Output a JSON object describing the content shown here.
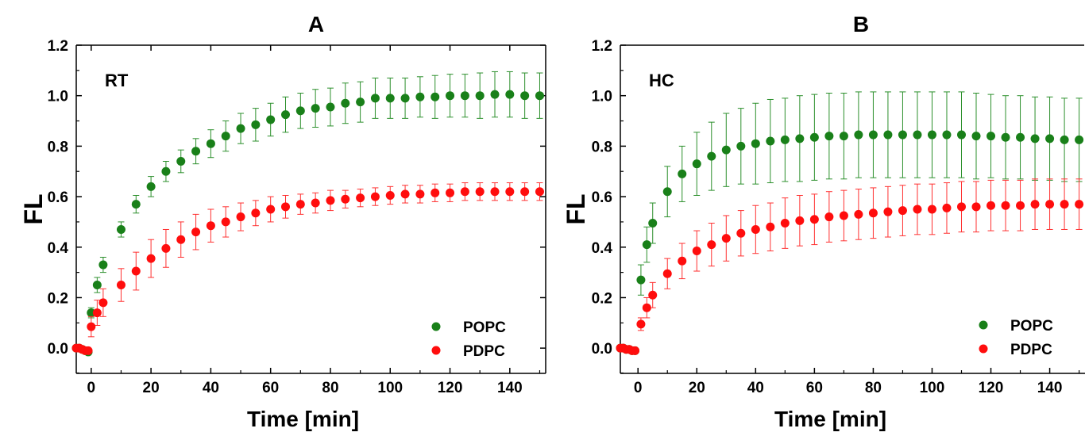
{
  "colors": {
    "POPC": "#198019",
    "PDPC": "#ff0d0d",
    "errorbar_POPC": "#2b8f2b",
    "errorbar_PDPC": "#ff3030",
    "axis": "#000000"
  },
  "chart_data": [
    {
      "type": "scatter",
      "title": "A",
      "annotation": "RT",
      "xlabel": "Time [min]",
      "ylabel": "FL",
      "xlim": [
        -5,
        152
      ],
      "ylim": [
        -0.1,
        1.2
      ],
      "xticks": [
        "0",
        "20",
        "40",
        "60",
        "80",
        "100",
        "120",
        "140"
      ],
      "yticks": [
        "0.0",
        "0.2",
        "0.4",
        "0.6",
        "0.8",
        "1.0",
        "1.2"
      ],
      "legend_position": "bottom-right",
      "grid": false,
      "series": [
        {
          "name": "POPC",
          "color": "#198019",
          "points": [
            {
              "x": -5,
              "y": 0.0,
              "err": 0
            },
            {
              "x": -4,
              "y": 0.0,
              "err": 0
            },
            {
              "x": -3,
              "y": -0.005,
              "err": 0
            },
            {
              "x": -2,
              "y": -0.01,
              "err": 0
            },
            {
              "x": -1,
              "y": -0.015,
              "err": 0
            },
            {
              "x": 0,
              "y": 0.14,
              "err": 0.02
            },
            {
              "x": 2,
              "y": 0.25,
              "err": 0.03
            },
            {
              "x": 4,
              "y": 0.33,
              "err": 0.03
            },
            {
              "x": 10,
              "y": 0.47,
              "err": 0.03
            },
            {
              "x": 15,
              "y": 0.57,
              "err": 0.035
            },
            {
              "x": 20,
              "y": 0.64,
              "err": 0.04
            },
            {
              "x": 25,
              "y": 0.7,
              "err": 0.04
            },
            {
              "x": 30,
              "y": 0.74,
              "err": 0.045
            },
            {
              "x": 35,
              "y": 0.78,
              "err": 0.05
            },
            {
              "x": 40,
              "y": 0.81,
              "err": 0.055
            },
            {
              "x": 45,
              "y": 0.84,
              "err": 0.06
            },
            {
              "x": 50,
              "y": 0.87,
              "err": 0.06
            },
            {
              "x": 55,
              "y": 0.885,
              "err": 0.065
            },
            {
              "x": 60,
              "y": 0.905,
              "err": 0.065
            },
            {
              "x": 65,
              "y": 0.925,
              "err": 0.07
            },
            {
              "x": 70,
              "y": 0.94,
              "err": 0.07
            },
            {
              "x": 75,
              "y": 0.95,
              "err": 0.075
            },
            {
              "x": 80,
              "y": 0.955,
              "err": 0.075
            },
            {
              "x": 85,
              "y": 0.97,
              "err": 0.08
            },
            {
              "x": 90,
              "y": 0.975,
              "err": 0.08
            },
            {
              "x": 95,
              "y": 0.99,
              "err": 0.08
            },
            {
              "x": 100,
              "y": 0.99,
              "err": 0.08
            },
            {
              "x": 105,
              "y": 0.99,
              "err": 0.08
            },
            {
              "x": 110,
              "y": 0.995,
              "err": 0.08
            },
            {
              "x": 115,
              "y": 0.995,
              "err": 0.085
            },
            {
              "x": 120,
              "y": 1.0,
              "err": 0.085
            },
            {
              "x": 125,
              "y": 1.0,
              "err": 0.085
            },
            {
              "x": 130,
              "y": 1.0,
              "err": 0.09
            },
            {
              "x": 135,
              "y": 1.005,
              "err": 0.09
            },
            {
              "x": 140,
              "y": 1.005,
              "err": 0.09
            },
            {
              "x": 145,
              "y": 1.0,
              "err": 0.09
            },
            {
              "x": 150,
              "y": 1.0,
              "err": 0.09
            }
          ]
        },
        {
          "name": "PDPC",
          "color": "#ff0d0d",
          "points": [
            {
              "x": -5,
              "y": 0.0,
              "err": 0
            },
            {
              "x": -4,
              "y": 0.0,
              "err": 0
            },
            {
              "x": -3,
              "y": -0.005,
              "err": 0
            },
            {
              "x": -2,
              "y": -0.01,
              "err": 0
            },
            {
              "x": -1,
              "y": -0.01,
              "err": 0
            },
            {
              "x": 0,
              "y": 0.085,
              "err": 0.04
            },
            {
              "x": 2,
              "y": 0.14,
              "err": 0.05
            },
            {
              "x": 4,
              "y": 0.18,
              "err": 0.055
            },
            {
              "x": 10,
              "y": 0.25,
              "err": 0.065
            },
            {
              "x": 15,
              "y": 0.305,
              "err": 0.075
            },
            {
              "x": 20,
              "y": 0.355,
              "err": 0.075
            },
            {
              "x": 25,
              "y": 0.395,
              "err": 0.075
            },
            {
              "x": 30,
              "y": 0.43,
              "err": 0.07
            },
            {
              "x": 35,
              "y": 0.46,
              "err": 0.07
            },
            {
              "x": 40,
              "y": 0.485,
              "err": 0.065
            },
            {
              "x": 45,
              "y": 0.5,
              "err": 0.06
            },
            {
              "x": 50,
              "y": 0.52,
              "err": 0.055
            },
            {
              "x": 55,
              "y": 0.535,
              "err": 0.05
            },
            {
              "x": 60,
              "y": 0.55,
              "err": 0.05
            },
            {
              "x": 65,
              "y": 0.56,
              "err": 0.045
            },
            {
              "x": 70,
              "y": 0.57,
              "err": 0.04
            },
            {
              "x": 75,
              "y": 0.575,
              "err": 0.04
            },
            {
              "x": 80,
              "y": 0.585,
              "err": 0.04
            },
            {
              "x": 85,
              "y": 0.59,
              "err": 0.035
            },
            {
              "x": 90,
              "y": 0.595,
              "err": 0.035
            },
            {
              "x": 95,
              "y": 0.6,
              "err": 0.035
            },
            {
              "x": 100,
              "y": 0.605,
              "err": 0.035
            },
            {
              "x": 105,
              "y": 0.61,
              "err": 0.035
            },
            {
              "x": 110,
              "y": 0.61,
              "err": 0.035
            },
            {
              "x": 115,
              "y": 0.615,
              "err": 0.035
            },
            {
              "x": 120,
              "y": 0.615,
              "err": 0.035
            },
            {
              "x": 125,
              "y": 0.62,
              "err": 0.035
            },
            {
              "x": 130,
              "y": 0.62,
              "err": 0.035
            },
            {
              "x": 135,
              "y": 0.62,
              "err": 0.035
            },
            {
              "x": 140,
              "y": 0.62,
              "err": 0.035
            },
            {
              "x": 145,
              "y": 0.62,
              "err": 0.035
            },
            {
              "x": 150,
              "y": 0.62,
              "err": 0.035
            }
          ]
        }
      ]
    },
    {
      "type": "scatter",
      "title": "B",
      "annotation": "HC",
      "xlabel": "Time [min]",
      "ylabel": "FL",
      "xlim": [
        -6,
        152
      ],
      "ylim": [
        -0.1,
        1.2
      ],
      "xticks": [
        "0",
        "20",
        "40",
        "60",
        "80",
        "100",
        "120",
        "140"
      ],
      "yticks": [
        "0.0",
        "0.2",
        "0.4",
        "0.6",
        "0.8",
        "1.0",
        "1.2"
      ],
      "legend_position": "bottom-right",
      "grid": false,
      "series": [
        {
          "name": "POPC",
          "color": "#198019",
          "points": [
            {
              "x": -6,
              "y": 0.0,
              "err": 0
            },
            {
              "x": -5,
              "y": 0.0,
              "err": 0
            },
            {
              "x": -4,
              "y": -0.005,
              "err": 0
            },
            {
              "x": -3,
              "y": -0.005,
              "err": 0
            },
            {
              "x": -2,
              "y": -0.01,
              "err": 0
            },
            {
              "x": -1,
              "y": -0.01,
              "err": 0
            },
            {
              "x": 1,
              "y": 0.27,
              "err": 0.06
            },
            {
              "x": 3,
              "y": 0.41,
              "err": 0.07
            },
            {
              "x": 5,
              "y": 0.495,
              "err": 0.08
            },
            {
              "x": 10,
              "y": 0.62,
              "err": 0.1
            },
            {
              "x": 15,
              "y": 0.69,
              "err": 0.11
            },
            {
              "x": 20,
              "y": 0.73,
              "err": 0.125
            },
            {
              "x": 25,
              "y": 0.76,
              "err": 0.135
            },
            {
              "x": 30,
              "y": 0.785,
              "err": 0.145
            },
            {
              "x": 35,
              "y": 0.8,
              "err": 0.15
            },
            {
              "x": 40,
              "y": 0.81,
              "err": 0.16
            },
            {
              "x": 45,
              "y": 0.82,
              "err": 0.165
            },
            {
              "x": 50,
              "y": 0.825,
              "err": 0.165
            },
            {
              "x": 55,
              "y": 0.83,
              "err": 0.17
            },
            {
              "x": 60,
              "y": 0.835,
              "err": 0.17
            },
            {
              "x": 65,
              "y": 0.84,
              "err": 0.17
            },
            {
              "x": 70,
              "y": 0.84,
              "err": 0.17
            },
            {
              "x": 75,
              "y": 0.845,
              "err": 0.17
            },
            {
              "x": 80,
              "y": 0.845,
              "err": 0.17
            },
            {
              "x": 85,
              "y": 0.845,
              "err": 0.17
            },
            {
              "x": 90,
              "y": 0.845,
              "err": 0.17
            },
            {
              "x": 95,
              "y": 0.845,
              "err": 0.17
            },
            {
              "x": 100,
              "y": 0.845,
              "err": 0.17
            },
            {
              "x": 105,
              "y": 0.845,
              "err": 0.17
            },
            {
              "x": 110,
              "y": 0.845,
              "err": 0.17
            },
            {
              "x": 115,
              "y": 0.84,
              "err": 0.17
            },
            {
              "x": 120,
              "y": 0.84,
              "err": 0.165
            },
            {
              "x": 125,
              "y": 0.835,
              "err": 0.165
            },
            {
              "x": 130,
              "y": 0.835,
              "err": 0.165
            },
            {
              "x": 135,
              "y": 0.83,
              "err": 0.165
            },
            {
              "x": 140,
              "y": 0.83,
              "err": 0.165
            },
            {
              "x": 145,
              "y": 0.825,
              "err": 0.165
            },
            {
              "x": 150,
              "y": 0.825,
              "err": 0.165
            }
          ]
        },
        {
          "name": "PDPC",
          "color": "#ff0d0d",
          "points": [
            {
              "x": -6,
              "y": 0.0,
              "err": 0
            },
            {
              "x": -5,
              "y": 0.0,
              "err": 0
            },
            {
              "x": -4,
              "y": -0.005,
              "err": 0
            },
            {
              "x": -3,
              "y": -0.005,
              "err": 0
            },
            {
              "x": -2,
              "y": -0.01,
              "err": 0
            },
            {
              "x": -1,
              "y": -0.01,
              "err": 0
            },
            {
              "x": 1,
              "y": 0.095,
              "err": 0.025
            },
            {
              "x": 3,
              "y": 0.16,
              "err": 0.04
            },
            {
              "x": 5,
              "y": 0.21,
              "err": 0.05
            },
            {
              "x": 10,
              "y": 0.295,
              "err": 0.06
            },
            {
              "x": 15,
              "y": 0.345,
              "err": 0.07
            },
            {
              "x": 20,
              "y": 0.385,
              "err": 0.08
            },
            {
              "x": 25,
              "y": 0.41,
              "err": 0.085
            },
            {
              "x": 30,
              "y": 0.435,
              "err": 0.09
            },
            {
              "x": 35,
              "y": 0.455,
              "err": 0.09
            },
            {
              "x": 40,
              "y": 0.47,
              "err": 0.095
            },
            {
              "x": 45,
              "y": 0.48,
              "err": 0.095
            },
            {
              "x": 50,
              "y": 0.495,
              "err": 0.1
            },
            {
              "x": 55,
              "y": 0.505,
              "err": 0.1
            },
            {
              "x": 60,
              "y": 0.51,
              "err": 0.1
            },
            {
              "x": 65,
              "y": 0.52,
              "err": 0.1
            },
            {
              "x": 70,
              "y": 0.525,
              "err": 0.1
            },
            {
              "x": 75,
              "y": 0.53,
              "err": 0.1
            },
            {
              "x": 80,
              "y": 0.535,
              "err": 0.1
            },
            {
              "x": 85,
              "y": 0.54,
              "err": 0.1
            },
            {
              "x": 90,
              "y": 0.545,
              "err": 0.1
            },
            {
              "x": 95,
              "y": 0.55,
              "err": 0.1
            },
            {
              "x": 100,
              "y": 0.55,
              "err": 0.1
            },
            {
              "x": 105,
              "y": 0.555,
              "err": 0.1
            },
            {
              "x": 110,
              "y": 0.56,
              "err": 0.1
            },
            {
              "x": 115,
              "y": 0.56,
              "err": 0.1
            },
            {
              "x": 120,
              "y": 0.565,
              "err": 0.1
            },
            {
              "x": 125,
              "y": 0.565,
              "err": 0.1
            },
            {
              "x": 130,
              "y": 0.565,
              "err": 0.1
            },
            {
              "x": 135,
              "y": 0.57,
              "err": 0.1
            },
            {
              "x": 140,
              "y": 0.57,
              "err": 0.1
            },
            {
              "x": 145,
              "y": 0.57,
              "err": 0.1
            },
            {
              "x": 150,
              "y": 0.57,
              "err": 0.1
            }
          ]
        }
      ]
    }
  ]
}
